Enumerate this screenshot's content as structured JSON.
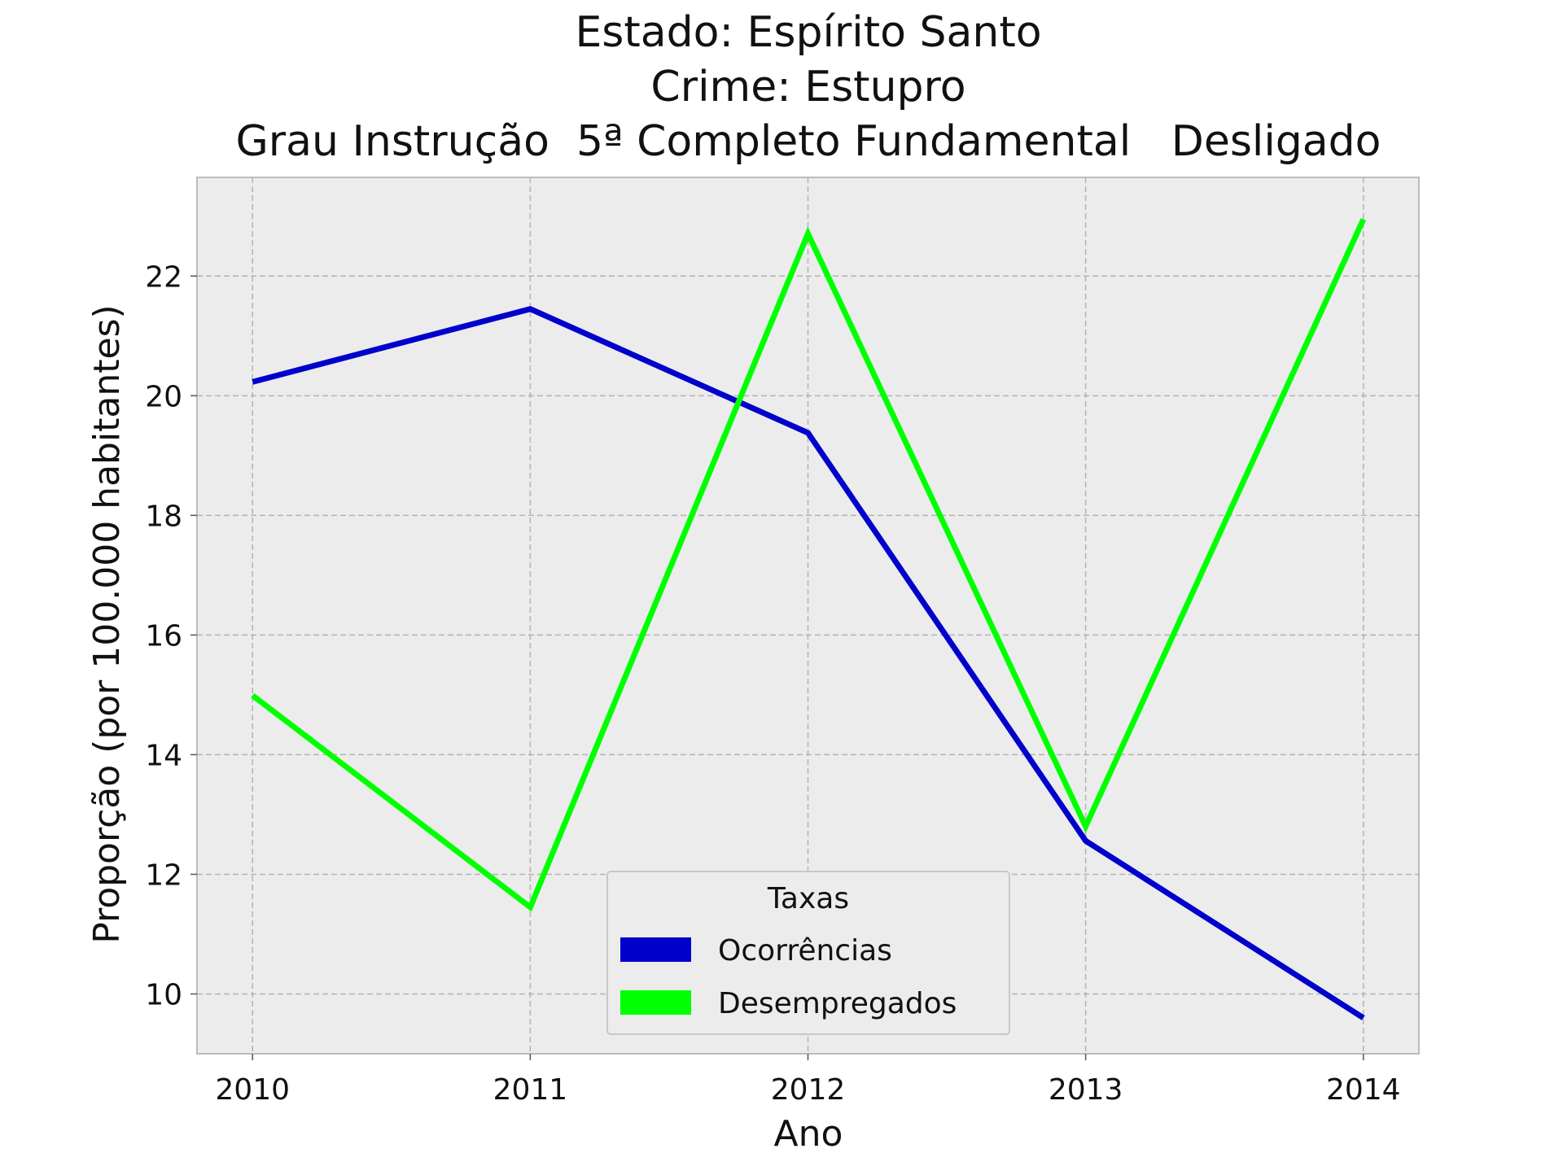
{
  "chart_data": {
    "type": "line",
    "title_lines": [
      "Estado: Espírito Santo",
      "Crime: Estupro",
      "Grau Instrução  5ª Completo Fundamental   Desligado"
    ],
    "xlabel": "Ano",
    "ylabel": "Proporção (por 100.000 habitantes)",
    "x": [
      2010,
      2011,
      2012,
      2013,
      2014
    ],
    "x_tick_labels": [
      "2010",
      "2011",
      "2012",
      "2013",
      "2014"
    ],
    "y_ticks": [
      10,
      12,
      14,
      16,
      18,
      20,
      22
    ],
    "y_tick_labels": [
      "10",
      "12",
      "14",
      "16",
      "18",
      "20",
      "22"
    ],
    "xlim": [
      2009.8,
      2014.2
    ],
    "ylim": [
      9.0,
      23.65
    ],
    "grid": true,
    "legend": {
      "title": "Taxas",
      "position": "lower-center"
    },
    "series": [
      {
        "name": "Ocorrências",
        "color": "#0000cc",
        "values": [
          20.23,
          21.45,
          19.38,
          12.56,
          9.6
        ]
      },
      {
        "name": "Desempregados",
        "color": "#00ff00",
        "values": [
          14.99,
          11.45,
          22.71,
          12.8,
          22.95
        ]
      }
    ]
  }
}
